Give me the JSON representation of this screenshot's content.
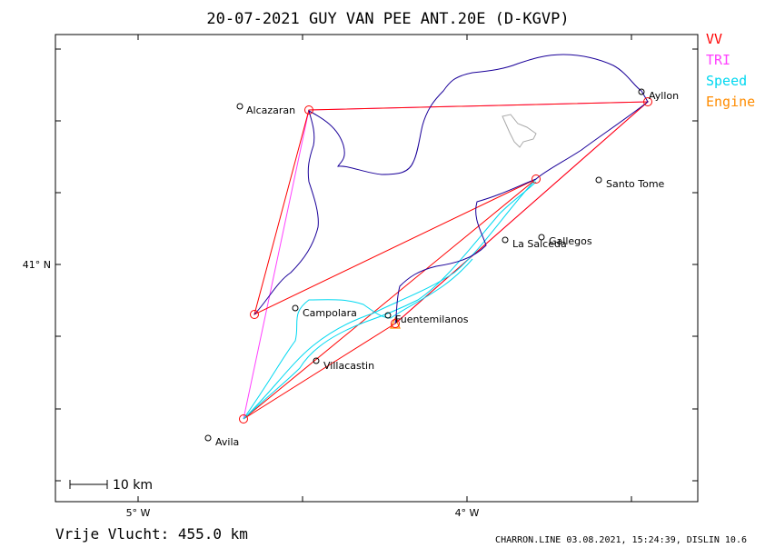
{
  "title": "20-07-2021   GUY VAN PEE   ANT.20E (D-KGVP)",
  "legend": [
    {
      "label": "VV",
      "color": "#ff0000"
    },
    {
      "label": "TRI",
      "color": "#ff40ff"
    },
    {
      "label": "Speed",
      "color": "#00d8f0"
    },
    {
      "label": "Engine",
      "color": "#ff8c00"
    }
  ],
  "track_color": "#1a0099",
  "axis_labels": {
    "lon_5w": "5° W",
    "lon_4w": "4° W",
    "lat_41n": "41° N"
  },
  "places": {
    "alcazaran": "Alcazaran",
    "ayllon": "Ayllon",
    "santo_tome": "Santo Tome",
    "gallegos": "Gallegos",
    "la_salceda": "La Salceda",
    "campolara": "Campolara",
    "fuentemilanos": "Fuentemilanos",
    "villacastin": "Villacastin",
    "avila": "Avila"
  },
  "scale_bar": "10 km",
  "distance": "Vrije Vlucht:  455.0 km",
  "footer": "CHARRON.LINE 03.08.2021, 15:24:39, DISLIN 10.6"
}
